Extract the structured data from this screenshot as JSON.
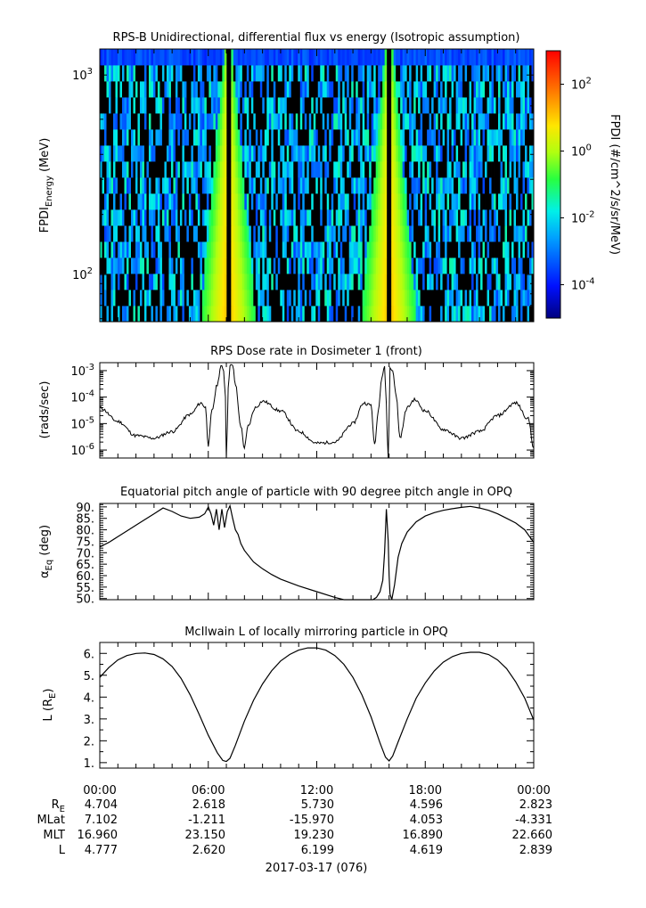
{
  "chart_data": [
    {
      "type": "heatmap",
      "title": "RPS-B  Unidirectional, differential flux vs energy (Isotropic assumption)",
      "ylabel": "FPDI_Energy (MeV)",
      "yscale": "log",
      "ylim": [
        58,
        1350
      ],
      "y_ticks": [
        {
          "base": "10",
          "exp": "2",
          "value": 100
        },
        {
          "base": "10",
          "exp": "3",
          "value": 1000
        }
      ],
      "xlim_hours": [
        0,
        24
      ],
      "colorbar": {
        "label": "FPDI (#/cm^2/s/sr/MeV)",
        "scale": "log",
        "range": [
          1e-05,
          1000
        ],
        "ticks": [
          {
            "base": "10",
            "exp": "2",
            "value": 100
          },
          {
            "base": "10",
            "exp": "0",
            "value": 1
          },
          {
            "base": "10",
            "exp": "-2",
            "value": 0.01
          },
          {
            "base": "10",
            "exp": "-4",
            "value": 0.0001
          }
        ]
      },
      "features": [
        {
          "description": "flux peak near perigee",
          "time_hours": 7.1
        },
        {
          "description": "flux peak near perigee",
          "time_hours": 16.0
        }
      ]
    },
    {
      "type": "line",
      "title": "RPS  Dose rate in Dosimeter 1 (front)",
      "ylabel": "(rads/sec)",
      "yscale": "log",
      "ylim": [
        5e-07,
        0.002
      ],
      "y_ticks": [
        {
          "base": "10",
          "exp": "-3",
          "value": 0.001
        },
        {
          "base": "10",
          "exp": "-4",
          "value": 0.0001
        },
        {
          "base": "10",
          "exp": "-5",
          "value": 1e-05
        },
        {
          "base": "10",
          "exp": "-6",
          "value": 1e-06
        }
      ],
      "series": [
        {
          "x_hours": [
            0,
            1,
            2,
            3,
            4,
            5,
            5.6,
            5.85,
            6.0,
            6.2,
            6.5,
            6.7,
            6.85,
            6.95,
            7.0,
            7.1,
            7.2,
            7.35,
            7.5,
            7.8,
            8.0,
            8.2,
            8.6,
            9.0,
            10,
            11,
            12,
            13,
            14,
            14.6,
            15.0,
            15.2,
            15.4,
            15.6,
            15.75,
            15.85,
            15.95,
            16.05,
            16.2,
            16.4,
            16.6,
            17.0,
            17.4,
            18,
            19,
            20,
            21,
            22,
            23,
            23.7,
            24
          ],
          "y": [
            4e-05,
            1.2e-05,
            3.5e-06,
            2.8e-06,
            5e-06,
            2.2e-05,
            6e-05,
            4e-05,
            1.5e-06,
            3e-05,
            0.0003,
            0.0015,
            0.001,
            0.0001,
            3e-07,
            0.0002,
            0.0017,
            0.0015,
            0.0003,
            8e-06,
            1.2e-06,
            8e-06,
            4e-05,
            7e-05,
            3e-05,
            5e-06,
            1.8e-06,
            2e-06,
            1e-05,
            6e-05,
            5e-05,
            1.5e-06,
            3e-05,
            0.0006,
            0.0015,
            5e-05,
            3e-07,
            0.0012,
            0.001,
            0.0001,
            3e-06,
            4e-05,
            8e-05,
            3e-05,
            6e-06,
            2.8e-06,
            5e-06,
            2e-05,
            6e-05,
            1.5e-05,
            1.2e-06
          ]
        }
      ]
    },
    {
      "type": "line",
      "title": "Equatorial pitch angle of particle with 90 degree pitch angle in OPQ",
      "ylabel": "α_Eq (deg)",
      "ylim": [
        49.5,
        91.5
      ],
      "y_ticks": [
        "90.",
        "85.",
        "80.",
        "75.",
        "70.",
        "65.",
        "60.",
        "55.",
        "50."
      ],
      "y_tick_values": [
        90,
        85,
        80,
        75,
        70,
        65,
        60,
        55,
        50
      ],
      "series": [
        {
          "x_hours": [
            0,
            0.5,
            1,
            1.5,
            2,
            2.5,
            3,
            3.5,
            4,
            4.5,
            5,
            5.5,
            5.8,
            6.0,
            6.15,
            6.3,
            6.45,
            6.6,
            6.75,
            6.9,
            7.05,
            7.2,
            7.35,
            7.5,
            7.65,
            7.8,
            8,
            8.5,
            9,
            9.5,
            10,
            11,
            12,
            13,
            13.5,
            14,
            14.5,
            14.8,
            15.1,
            15.3,
            15.5,
            15.65,
            15.75,
            15.85,
            15.95,
            16.0,
            16.05,
            16.15,
            16.3,
            16.5,
            16.7,
            17,
            17.5,
            18,
            18.5,
            19,
            19.5,
            20,
            20.5,
            21,
            21.5,
            22,
            22.5,
            23,
            23.5,
            24
          ],
          "y": [
            72.5,
            74.5,
            77,
            79.5,
            82,
            84.5,
            87,
            89.5,
            88,
            86,
            85,
            85.5,
            87,
            90,
            87,
            82,
            89,
            80,
            89,
            81,
            88,
            90.5,
            85,
            80,
            78,
            74,
            71,
            66,
            63,
            60.5,
            58.5,
            55.5,
            53,
            50.5,
            49.5,
            49,
            49,
            49,
            49.5,
            50.5,
            53,
            58,
            70,
            89,
            75,
            60,
            52,
            49,
            56,
            68,
            74,
            79,
            83.5,
            86,
            87.5,
            88.5,
            89.2,
            89.8,
            90.2,
            89.5,
            88.5,
            87,
            85,
            83,
            80,
            74.5
          ]
        }
      ]
    },
    {
      "type": "line",
      "title": "McIlwain L of locally mirroring particle in OPQ",
      "ylabel": "L (R_E)",
      "ylim": [
        0.75,
        6.5
      ],
      "y_ticks": [
        "6.",
        "5.",
        "4.",
        "3.",
        "2.",
        "1."
      ],
      "y_tick_values": [
        6,
        5,
        4,
        3,
        2,
        1
      ],
      "series": [
        {
          "x_hours": [
            0,
            0.5,
            1,
            1.5,
            2,
            2.5,
            3,
            3.5,
            4,
            4.5,
            5,
            5.5,
            6,
            6.5,
            6.8,
            7.0,
            7.2,
            7.5,
            8,
            8.5,
            9,
            9.5,
            10,
            10.5,
            11,
            11.5,
            12,
            12.5,
            13,
            13.5,
            14,
            14.5,
            15,
            15.5,
            15.8,
            16.0,
            16.2,
            16.5,
            17,
            17.5,
            18,
            18.5,
            19,
            19.5,
            20,
            20.5,
            21,
            21.5,
            22,
            22.5,
            23,
            23.5,
            24
          ],
          "y": [
            4.9,
            5.35,
            5.7,
            5.9,
            6.0,
            6.02,
            5.95,
            5.75,
            5.4,
            4.85,
            4.1,
            3.2,
            2.25,
            1.45,
            1.1,
            1.05,
            1.2,
            1.8,
            2.9,
            3.85,
            4.6,
            5.2,
            5.65,
            5.95,
            6.15,
            6.25,
            6.25,
            6.15,
            5.9,
            5.5,
            4.9,
            4.1,
            3.1,
            1.9,
            1.25,
            1.08,
            1.3,
            1.95,
            3.0,
            3.95,
            4.65,
            5.2,
            5.6,
            5.85,
            6.0,
            6.05,
            6.05,
            5.95,
            5.7,
            5.3,
            4.7,
            3.95,
            2.95
          ]
        }
      ]
    }
  ],
  "x_axis": {
    "tick_labels": [
      "00:00",
      "06:00",
      "12:00",
      "18:00",
      "00:00"
    ],
    "tick_hours": [
      0,
      6,
      12,
      18,
      24
    ],
    "date_label": "2017-03-17 (076)"
  },
  "ephemeris": {
    "row_labels": [
      {
        "base": "R",
        "sub": "E"
      },
      {
        "base": "MLat",
        "sub": ""
      },
      {
        "base": "MLT",
        "sub": ""
      },
      {
        "base": "L",
        "sub": ""
      }
    ],
    "rows": [
      [
        "4.704",
        "2.618",
        "5.730",
        "4.596",
        "2.823"
      ],
      [
        "7.102",
        "-1.211",
        "-15.970",
        "4.053",
        "-4.331"
      ],
      [
        "16.960",
        "23.150",
        "19.230",
        "16.890",
        "22.660"
      ],
      [
        "4.777",
        "2.620",
        "6.199",
        "4.619",
        "2.839"
      ]
    ]
  },
  "colors": {
    "axis": "#000000",
    "line": "#000000",
    "background": "#ffffff"
  }
}
